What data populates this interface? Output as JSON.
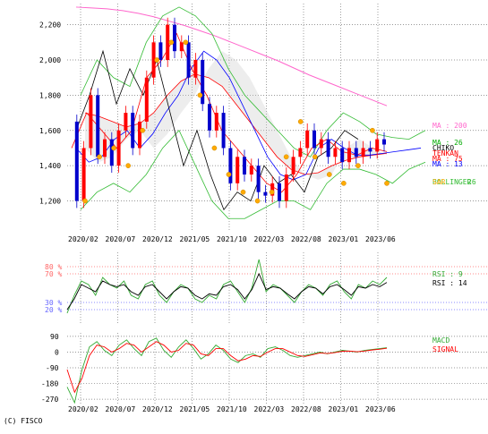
{
  "credit": "(C) FISCO",
  "colors": {
    "price": "#000080",
    "up": "#ff0000",
    "down": "#0000cc",
    "ma200": "#ff66cc",
    "ma26": "#00aa00",
    "ma75": "#ff0000",
    "ma13": "#0000ff",
    "chikou": "#000000",
    "tenkan": "#ff0000",
    "kijun": "#0000ff",
    "cloud": "#999999",
    "bollinger": "#33bb33",
    "sar": "#ffaa00",
    "rsi9": "#33aa33",
    "rsi14": "#000000",
    "macd": "#33aa33",
    "signal": "#ff0000",
    "rsi_hi": "#ff6666",
    "rsi_lo": "#6666ff"
  },
  "chart_data": [
    {
      "type": "line",
      "panel": "price",
      "x_ticks": [
        "2020/02",
        "2020/07",
        "2020/12",
        "2021/05",
        "2021/10",
        "2022/03",
        "2022/08",
        "2023/01",
        "2023/06"
      ],
      "y_ticks": [
        "2,200",
        "2,000",
        "1,800",
        "1,600",
        "1,400",
        "1,200"
      ],
      "ylim": [
        1030,
        2320
      ],
      "grid": true,
      "legend": [
        {
          "label": "MA : 200",
          "color": "#ff66cc"
        },
        {
          "label": "MA : 26",
          "color": "#00aa00"
        },
        {
          "label": "CHIKO",
          "color": "#000000"
        },
        {
          "label": "TENKAN",
          "color": "#ff0000"
        },
        {
          "label": "MA : 75",
          "color": "#ff0000"
        },
        {
          "label": "MA : 13",
          "color": "#0000ff"
        },
        {
          "label": "BOLLINGER",
          "color": "#33bb33"
        },
        {
          "label": "SAR",
          "color": "#ffaa00"
        },
        {
          "label": "26",
          "color": "#33bb33"
        }
      ],
      "series": {
        "price_close": [
          1650,
          1200,
          1500,
          1800,
          1450,
          1550,
          1400,
          1600,
          1700,
          1500,
          1650,
          1900,
          2100,
          2000,
          2200,
          2050,
          2100,
          1900,
          2000,
          1750,
          1600,
          1700,
          1500,
          1300,
          1450,
          1350,
          1400,
          1250,
          1230,
          1300,
          1200,
          1350,
          1450,
          1500,
          1600,
          1500,
          1550,
          1450,
          1500,
          1420,
          1500,
          1450,
          1500,
          1480,
          1550,
          1520
        ],
        "ma200": [
          2300,
          2295,
          2290,
          2280,
          2265,
          2245,
          2220,
          2195,
          2165,
          2135,
          2100,
          2065,
          2030,
          1995,
          1955,
          1915,
          1880,
          1845,
          1810,
          1775,
          1740
        ],
        "ma75": [
          1700,
          1680,
          1650,
          1620,
          1640,
          1700,
          1800,
          1880,
          1920,
          1900,
          1850,
          1750,
          1650,
          1550,
          1450,
          1380,
          1350,
          1360,
          1400,
          1430,
          1450,
          1460,
          1470
        ],
        "ma26": [
          1500,
          1420,
          1450,
          1550,
          1600,
          1500,
          1580,
          1700,
          1800,
          1950,
          2050,
          2000,
          1900,
          1750,
          1600,
          1450,
          1350,
          1320,
          1350,
          1500,
          1550,
          1500,
          1460,
          1460,
          1470,
          1480,
          1490,
          1500
        ],
        "chikou": [
          1600,
          1800,
          2050,
          1750,
          1950,
          1800,
          2000,
          1700,
          1400,
          1600,
          1350,
          1150,
          1250,
          1200,
          1400,
          1300,
          1350,
          1250,
          1450,
          1500,
          1600,
          1550
        ],
        "tenkan": [
          1500,
          1700,
          1600,
          1500,
          1600,
          1900,
          2000,
          2150,
          1950,
          1800,
          1600,
          1500,
          1400,
          1300,
          1250,
          1350,
          1500,
          1550,
          1480,
          1460,
          1500,
          1480
        ],
        "bb_upper": [
          1800,
          2000,
          1900,
          1850,
          2100,
          2250,
          2300,
          2250,
          2150,
          1950,
          1800,
          1700,
          1600,
          1500,
          1450,
          1600,
          1700,
          1650,
          1580,
          1560,
          1550,
          1600
        ],
        "bb_lower": [
          1150,
          1250,
          1300,
          1250,
          1350,
          1500,
          1600,
          1400,
          1200,
          1100,
          1100,
          1150,
          1200,
          1200,
          1150,
          1300,
          1380,
          1380,
          1350,
          1300,
          1380,
          1420
        ],
        "sar": [
          1200,
          1450,
          1500,
          1400,
          1600,
          2000,
          2100,
          2100,
          1800,
          1500,
          1350,
          1250,
          1200,
          1250,
          1450,
          1650,
          1450,
          1350,
          1300,
          1400,
          1600,
          1300
        ]
      }
    },
    {
      "type": "line",
      "panel": "rsi",
      "y_ticks": [
        "80 %",
        "70 %",
        "30 %",
        "20 %"
      ],
      "ylim": [
        0,
        100
      ],
      "guides": [
        80,
        70,
        30,
        20
      ],
      "legend": [
        {
          "label": "RSI : 9",
          "color": "#33aa33"
        },
        {
          "label": "RSI : 14",
          "color": "#000000"
        }
      ],
      "series": {
        "rsi9": [
          15,
          40,
          60,
          55,
          40,
          65,
          55,
          50,
          60,
          40,
          35,
          55,
          60,
          40,
          30,
          45,
          55,
          50,
          35,
          30,
          40,
          35,
          55,
          60,
          45,
          30,
          50,
          90,
          45,
          55,
          50,
          40,
          30,
          45,
          55,
          50,
          40,
          55,
          60,
          45,
          35,
          55,
          50,
          60,
          55,
          65
        ],
        "rsi14": [
          20,
          35,
          55,
          50,
          45,
          60,
          55,
          52,
          55,
          45,
          40,
          52,
          55,
          45,
          35,
          45,
          52,
          50,
          40,
          35,
          42,
          40,
          52,
          55,
          48,
          35,
          48,
          70,
          48,
          52,
          50,
          42,
          35,
          45,
          52,
          50,
          42,
          52,
          55,
          48,
          40,
          52,
          50,
          55,
          52,
          58
        ]
      }
    },
    {
      "type": "line",
      "panel": "macd",
      "y_ticks": [
        "90",
        "0",
        "-90",
        "-180",
        "-270"
      ],
      "ylim": [
        -300,
        110
      ],
      "legend": [
        {
          "label": "MACD",
          "color": "#33aa33"
        },
        {
          "label": "SIGNAL",
          "color": "#ff0000"
        }
      ],
      "series": {
        "macd": [
          -200,
          -290,
          -100,
          30,
          60,
          10,
          -20,
          40,
          70,
          20,
          -20,
          60,
          80,
          10,
          -30,
          30,
          70,
          20,
          -40,
          -10,
          40,
          10,
          -40,
          -60,
          -20,
          -10,
          -30,
          20,
          30,
          10,
          -20,
          -30,
          -20,
          -10,
          0,
          -10,
          0,
          10,
          5,
          0,
          10,
          15,
          20,
          25
        ],
        "signal": [
          -100,
          -230,
          -150,
          -20,
          40,
          30,
          0,
          20,
          50,
          40,
          0,
          30,
          60,
          40,
          0,
          10,
          50,
          40,
          -10,
          -20,
          20,
          20,
          -20,
          -50,
          -40,
          -20,
          -25,
          0,
          20,
          20,
          0,
          -20,
          -25,
          -15,
          -5,
          -8,
          -3,
          5,
          6,
          2,
          6,
          12,
          16,
          22
        ]
      }
    }
  ]
}
